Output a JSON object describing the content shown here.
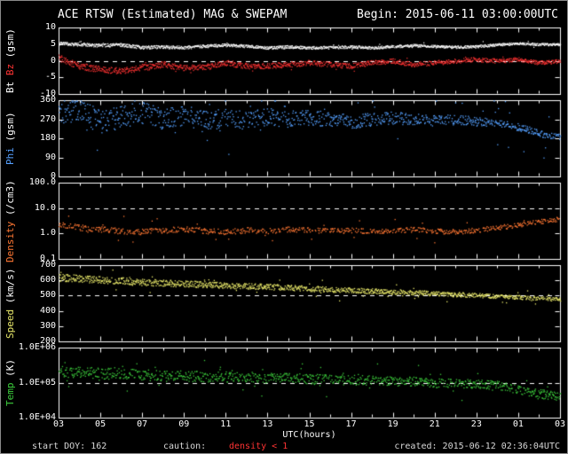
{
  "title": {
    "left": "ACE RTSW (Estimated) MAG & SWEPAM",
    "right": "Begin: 2015-06-11 03:00:00UTC"
  },
  "x_axis": {
    "label": "UTC(hours)",
    "tick_labels": [
      "03",
      "05",
      "07",
      "09",
      "11",
      "13",
      "15",
      "17",
      "19",
      "21",
      "23",
      "01",
      "03"
    ],
    "start_hour": 3,
    "end_hour": 27
  },
  "footer": {
    "start_doy": "start DOY: 162",
    "caution_label": "caution:",
    "caution_value": "density < 1",
    "caution_color": "#ff3333",
    "created": "created: 2015-06-12 02:36:04UTC"
  },
  "colors": {
    "background": "#000000",
    "frame": "#ffffff",
    "text": "#ffffff",
    "bt": "#ffffff",
    "bz": "#ff3333",
    "phi": "#55a0ff",
    "density": "#ff7733",
    "speed": "#e8e86a",
    "temp": "#3ccc3c",
    "ref_line": "#ffffff"
  },
  "chart_data": [
    {
      "type": "scatter",
      "name": "bt-bz",
      "ylabel_parts": [
        {
          "text": "Bt ",
          "color": "#ffffff"
        },
        {
          "text": "Bz ",
          "color": "#ff3333"
        },
        {
          "text": "(gsm)",
          "color": "#ffffff"
        }
      ],
      "log": false,
      "ylim": [
        -10,
        10
      ],
      "yticks": [
        {
          "v": 10,
          "label": "10"
        },
        {
          "v": 5,
          "label": "5"
        },
        {
          "v": 0,
          "label": "0"
        },
        {
          "v": -5,
          "label": "-5"
        },
        {
          "v": -10,
          "label": "-10"
        }
      ],
      "ref_lines": [
        0
      ],
      "x_hours": [
        3,
        4,
        5,
        6,
        7,
        8,
        9,
        10,
        11,
        12,
        13,
        14,
        15,
        16,
        17,
        18,
        19,
        20,
        21,
        22,
        23,
        24,
        25,
        26,
        27
      ],
      "series": [
        {
          "name": "Bt",
          "color": "#ffffff",
          "values": [
            5.3,
            5.0,
            4.7,
            4.9,
            4.1,
            4.3,
            4.1,
            4.5,
            4.8,
            4.5,
            4.0,
            4.3,
            4.0,
            4.1,
            4.3,
            4.0,
            4.4,
            4.7,
            4.4,
            4.2,
            4.4,
            4.9,
            5.3,
            5.0,
            5.0
          ],
          "jitter": [
            0.5,
            0.35
          ],
          "dropout": 0.05,
          "outlier_p": 0.02,
          "outlier_amp": 1.2,
          "n": 1600,
          "size": 1.2
        },
        {
          "name": "Bz",
          "color": "#ff3333",
          "values": [
            1.0,
            -1.5,
            -2.5,
            -3.0,
            -2.0,
            -1.0,
            -2.0,
            -1.8,
            -0.5,
            -1.5,
            -1.5,
            -1.0,
            -0.5,
            -1.0,
            -1.5,
            -0.5,
            0.0,
            -1.0,
            -0.5,
            0.0,
            0.5,
            0.0,
            0.5,
            -0.5,
            0.0
          ],
          "jitter": [
            1.0,
            0.6
          ],
          "dropout": 0.12,
          "outlier_p": 0.03,
          "outlier_amp": 1.6,
          "n": 1500,
          "size": 1.2
        }
      ]
    },
    {
      "type": "scatter",
      "name": "phi",
      "ylabel_parts": [
        {
          "text": "Phi ",
          "color": "#55a0ff"
        },
        {
          "text": "(gsm)",
          "color": "#ffffff"
        }
      ],
      "log": false,
      "ylim": [
        0,
        360
      ],
      "yticks": [
        {
          "v": 360,
          "label": "360"
        },
        {
          "v": 270,
          "label": "270"
        },
        {
          "v": 180,
          "label": "180"
        },
        {
          "v": 90,
          "label": "90"
        },
        {
          "v": 0,
          "label": "0"
        }
      ],
      "ref_lines": [],
      "x_hours": [
        3,
        4,
        5,
        6,
        7,
        8,
        9,
        10,
        11,
        12,
        13,
        14,
        15,
        16,
        17,
        18,
        19,
        20,
        21,
        22,
        23,
        24,
        25,
        26,
        27
      ],
      "series": [
        {
          "name": "Phi",
          "color": "#55a0ff",
          "values": [
            295,
            315,
            260,
            285,
            300,
            275,
            290,
            265,
            280,
            272,
            285,
            272,
            280,
            270,
            262,
            270,
            278,
            270,
            266,
            270,
            262,
            252,
            235,
            205,
            188
          ],
          "jitter": [
            60,
            14
          ],
          "dropout": 0.2,
          "outlier_p": 0.05,
          "outlier_amp": 130,
          "n": 1300,
          "size": 1.3
        }
      ]
    },
    {
      "type": "scatter",
      "name": "density",
      "ylabel_parts": [
        {
          "text": "Density ",
          "color": "#ff7733"
        },
        {
          "text": "(/cm3)",
          "color": "#ffffff"
        }
      ],
      "log": true,
      "ylim": [
        0.1,
        100
      ],
      "yticks": [
        {
          "v": 100,
          "label": "100.0"
        },
        {
          "v": 10,
          "label": "10.0"
        },
        {
          "v": 1,
          "label": "1.0"
        },
        {
          "v": 0.1,
          "label": "0.1"
        }
      ],
      "ref_lines": [
        10
      ],
      "x_hours": [
        3,
        4,
        5,
        6,
        7,
        8,
        9,
        10,
        11,
        12,
        13,
        14,
        15,
        16,
        17,
        18,
        19,
        20,
        21,
        22,
        23,
        24,
        25,
        26,
        27
      ],
      "series": [
        {
          "name": "Density",
          "color": "#ff7733",
          "values": [
            2.2,
            1.8,
            1.5,
            1.3,
            1.2,
            1.4,
            1.5,
            1.3,
            1.2,
            1.4,
            1.3,
            1.5,
            1.4,
            1.3,
            1.4,
            1.2,
            1.3,
            1.5,
            1.3,
            1.2,
            1.4,
            1.8,
            2.2,
            3.0,
            4.0
          ],
          "jitter": [
            0.12,
            0.09
          ],
          "dropout": 0.3,
          "outlier_p": 0.05,
          "outlier_amp": 0.55,
          "n": 1100,
          "size": 1.3
        }
      ]
    },
    {
      "type": "scatter",
      "name": "speed",
      "ylabel_parts": [
        {
          "text": "Speed ",
          "color": "#e8e86a"
        },
        {
          "text": "(km/s)",
          "color": "#ffffff"
        }
      ],
      "log": false,
      "ylim": [
        200,
        700
      ],
      "yticks": [
        {
          "v": 700,
          "label": "700"
        },
        {
          "v": 600,
          "label": "600"
        },
        {
          "v": 500,
          "label": "500"
        },
        {
          "v": 400,
          "label": "400"
        },
        {
          "v": 300,
          "label": "300"
        },
        {
          "v": 200,
          "label": "200"
        }
      ],
      "ref_lines": [
        500
      ],
      "x_hours": [
        3,
        4,
        5,
        6,
        7,
        8,
        9,
        10,
        11,
        12,
        13,
        14,
        15,
        16,
        17,
        18,
        19,
        20,
        21,
        22,
        23,
        24,
        25,
        26,
        27
      ],
      "series": [
        {
          "name": "Speed",
          "color": "#e8e86a",
          "values": [
            620,
            615,
            605,
            600,
            590,
            585,
            580,
            575,
            570,
            565,
            560,
            555,
            548,
            542,
            538,
            532,
            528,
            522,
            516,
            510,
            505,
            498,
            492,
            485,
            478
          ],
          "jitter": [
            24,
            12
          ],
          "dropout": 0.15,
          "outlier_p": 0.04,
          "outlier_amp": 55,
          "n": 1400,
          "size": 1.3
        }
      ]
    },
    {
      "type": "scatter",
      "name": "temp",
      "ylabel_parts": [
        {
          "text": "Temp ",
          "color": "#3ccc3c"
        },
        {
          "text": "(K)",
          "color": "#ffffff"
        }
      ],
      "log": true,
      "ylim": [
        10000,
        1000000
      ],
      "yticks": [
        {
          "v": 1000000,
          "label": "1.0E+06"
        },
        {
          "v": 100000,
          "label": "1.0E+05"
        },
        {
          "v": 10000,
          "label": "1.0E+04"
        }
      ],
      "ref_lines": [
        100000
      ],
      "x_hours": [
        3,
        4,
        5,
        6,
        7,
        8,
        9,
        10,
        11,
        12,
        13,
        14,
        15,
        16,
        17,
        18,
        19,
        20,
        21,
        22,
        23,
        24,
        25,
        26,
        27
      ],
      "series": [
        {
          "name": "Temp",
          "color": "#3ccc3c",
          "values": [
            220000,
            200000,
            190000,
            180000,
            170000,
            160000,
            160000,
            150000,
            150000,
            150000,
            140000,
            140000,
            130000,
            130000,
            120000,
            120000,
            110000,
            110000,
            100000,
            100000,
            95000,
            85000,
            65000,
            50000,
            40000
          ],
          "jitter": [
            0.16,
            0.12
          ],
          "dropout": 0.2,
          "outlier_p": 0.07,
          "outlier_amp": 0.45,
          "n": 1200,
          "size": 1.3
        }
      ]
    }
  ]
}
